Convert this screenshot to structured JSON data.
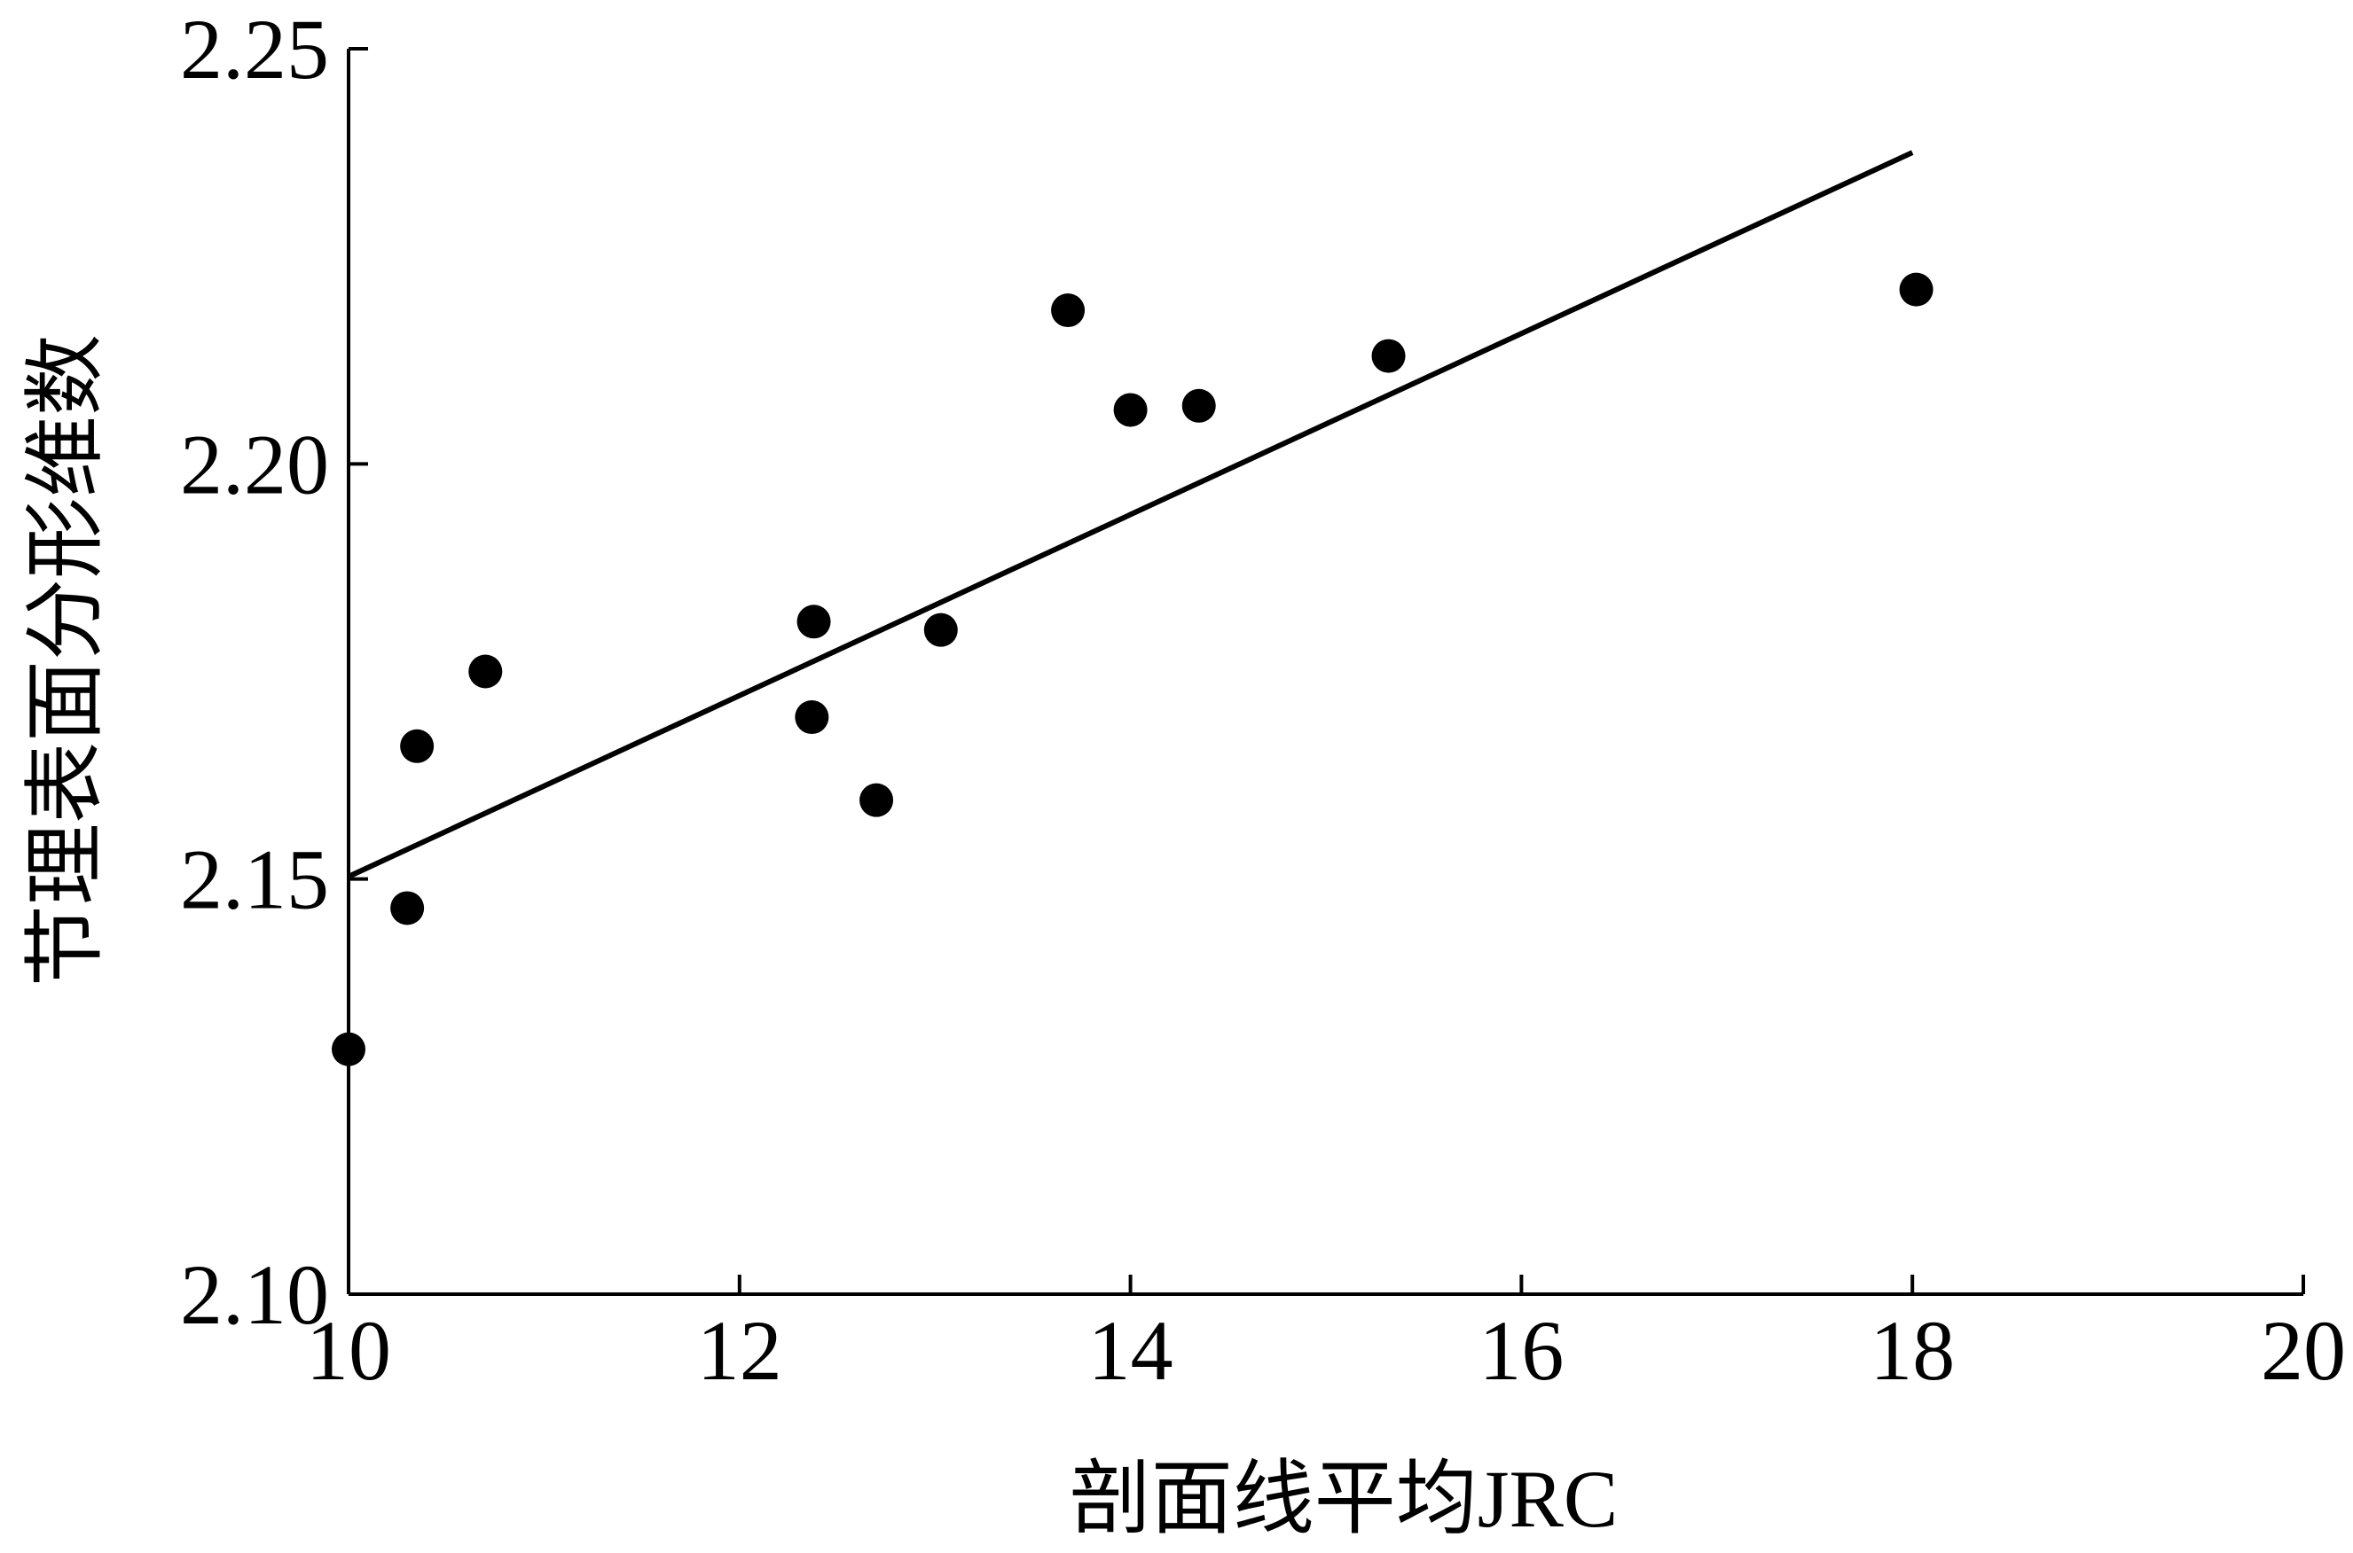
{
  "chart_data": {
    "type": "scatter",
    "title": "",
    "xlabel": "剖面线平均JRC",
    "ylabel": "节理表面分形维数",
    "xlim": [
      10,
      20
    ],
    "ylim": [
      2.1,
      2.25
    ],
    "xticks": [
      10,
      12,
      14,
      16,
      18,
      20
    ],
    "yticks": [
      2.1,
      2.15,
      2.2,
      2.25
    ],
    "xtick_labels": [
      "10",
      "12",
      "14",
      "16",
      "18",
      "20"
    ],
    "ytick_labels": [
      "2.10",
      "2.15",
      "2.20",
      "2.25"
    ],
    "grid": false,
    "legend": null,
    "series": [
      {
        "type": "scatter",
        "x": [
          10.0,
          10.3,
          10.35,
          10.7,
          12.37,
          12.38,
          12.7,
          13.03,
          13.68,
          14.0,
          14.35,
          15.32,
          18.02
        ],
        "y": [
          2.1295,
          2.1465,
          2.166,
          2.175,
          2.1695,
          2.181,
          2.1595,
          2.18,
          2.2185,
          2.2065,
          2.207,
          2.213,
          2.221
        ]
      },
      {
        "type": "line",
        "x": [
          10.0,
          18.0
        ],
        "y": [
          2.1503,
          2.2375
        ]
      }
    ]
  }
}
